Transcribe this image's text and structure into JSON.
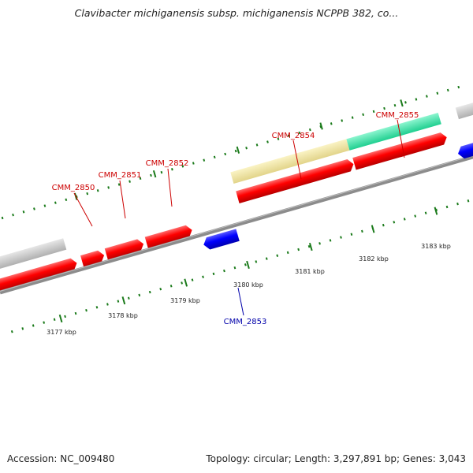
{
  "title": "Clavibacter michiganensis subsp. michiganensis NCPPB 382, co...",
  "footer": {
    "accession": "Accession: NC_009480",
    "stats": "Topology: circular; Length: 3,297,891 bp; Genes: 3,043"
  },
  "colors": {
    "forward_gene": "#ff0000",
    "reverse_gene": "#0000ff",
    "forward_label": "#cc0000",
    "reverse_label": "#0000aa",
    "backbone": "#8c8c8c",
    "tick": "#1a7a1a",
    "grey_feature": "#c8c8c8",
    "yellow_feature": "#f0e6a0",
    "green_feature": "#3ee6a8"
  },
  "scale_labels": [
    "3177 kbp",
    "3178 kbp",
    "3179 kbp",
    "3180 kbp",
    "3181 kbp",
    "3182 kbp",
    "3183 kbp"
  ],
  "gene_labels": [
    {
      "name": "CMM_2850",
      "strand": "forward"
    },
    {
      "name": "CMM_2851",
      "strand": "forward"
    },
    {
      "name": "CMM_2852",
      "strand": "forward"
    },
    {
      "name": "CMM_2853",
      "strand": "reverse"
    },
    {
      "name": "CMM_2854",
      "strand": "forward"
    },
    {
      "name": "CMM_2855",
      "strand": "forward"
    }
  ]
}
